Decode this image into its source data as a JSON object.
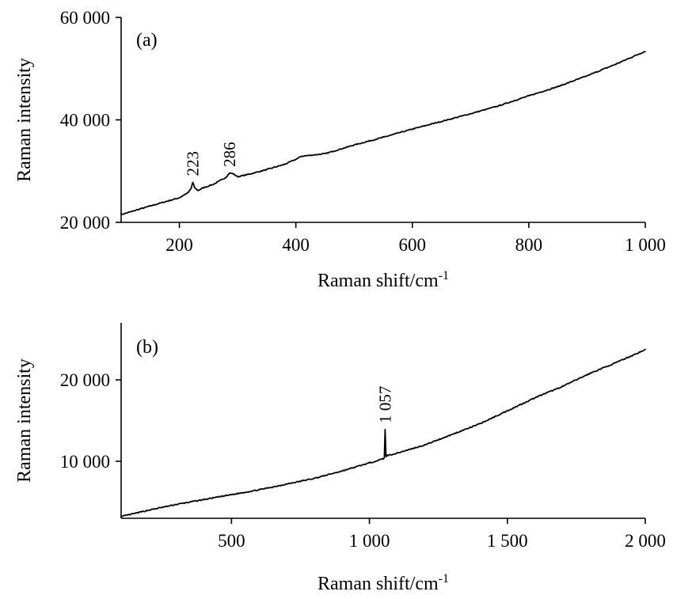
{
  "chart_data": [
    {
      "type": "line",
      "panel_label": "(a)",
      "xlabel": "Raman shift/cm",
      "xlabel_sup": "-1",
      "ylabel": "Raman intensity",
      "xlim": [
        100,
        1000
      ],
      "ylim": [
        20000,
        60000
      ],
      "x_ticks": [
        200,
        400,
        600,
        800,
        1000
      ],
      "x_tick_labels": [
        "200",
        "400",
        "600",
        "800",
        "1 000"
      ],
      "y_ticks": [
        20000,
        40000,
        60000
      ],
      "y_tick_labels": [
        "20 000",
        "40 000",
        "60 000"
      ],
      "grid": false,
      "series": [
        {
          "values_x": [
            100,
            150,
            200,
            215,
            220,
            223,
            226,
            232,
            240,
            260,
            280,
            286,
            292,
            300,
            320,
            350,
            380,
            400,
            410,
            450,
            500,
            550,
            600,
            650,
            700,
            750,
            800,
            850,
            900,
            950,
            1000
          ],
          "values_y": [
            21500,
            23200,
            24800,
            25800,
            26600,
            27800,
            26800,
            26200,
            26700,
            27500,
            28800,
            29600,
            29500,
            28900,
            29400,
            30300,
            31300,
            32300,
            32900,
            33400,
            35100,
            36600,
            38200,
            39700,
            41200,
            42800,
            44700,
            46500,
            48600,
            50900,
            53400
          ]
        }
      ],
      "annotations": [
        {
          "text": "223",
          "x": 223,
          "y": 27800
        },
        {
          "text": "286",
          "x": 286,
          "y": 29600
        }
      ]
    },
    {
      "type": "line",
      "panel_label": "(b)",
      "xlabel": "Raman shift/cm",
      "xlabel_sup": "-1",
      "ylabel": "Raman intensity",
      "xlim": [
        100,
        2000
      ],
      "ylim": [
        3000,
        27000
      ],
      "x_ticks": [
        500,
        1000,
        1500,
        2000
      ],
      "x_tick_labels": [
        "500",
        "1 000",
        "1 500",
        "2 000"
      ],
      "y_ticks": [
        10000,
        20000
      ],
      "y_tick_labels": [
        "10 000",
        "20 000"
      ],
      "grid": false,
      "series": [
        {
          "values_x": [
            100,
            200,
            300,
            400,
            500,
            600,
            700,
            800,
            900,
            1000,
            1050,
            1054,
            1057,
            1060,
            1064,
            1100,
            1200,
            1300,
            1400,
            1500,
            1600,
            1700,
            1800,
            1900,
            2000
          ],
          "values_y": [
            3200,
            4000,
            4700,
            5300,
            5900,
            6500,
            7200,
            7900,
            8800,
            9800,
            10300,
            10400,
            13900,
            10600,
            10700,
            11000,
            12000,
            13300,
            14600,
            16200,
            17800,
            19200,
            20800,
            22200,
            23700
          ]
        }
      ],
      "annotations": [
        {
          "text": "1 057",
          "x": 1057,
          "y": 13900
        }
      ]
    }
  ]
}
